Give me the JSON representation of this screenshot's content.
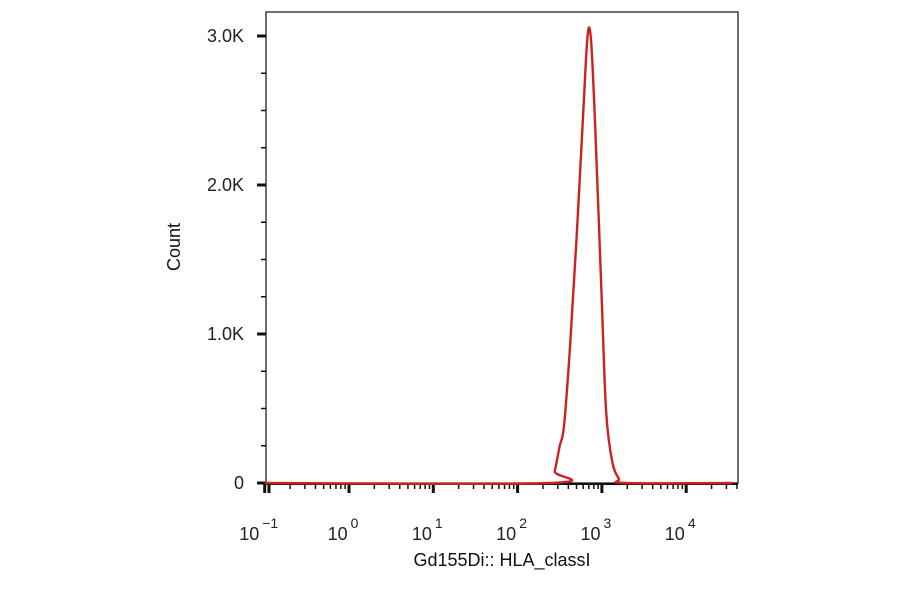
{
  "chart_data": {
    "type": "line",
    "xlabel": "Gd155Di:: HLA_classI",
    "ylabel": "Count",
    "x_scale": "log (biexponential display)",
    "xlim": [
      -1,
      4.55
    ],
    "ylim": [
      0,
      3200
    ],
    "grid": false,
    "legend": "none",
    "y_ticks": [
      {
        "value": 0,
        "label": "0"
      },
      {
        "value": 1000,
        "label": "1.0K"
      },
      {
        "value": 2000,
        "label": "2.0K"
      },
      {
        "value": 3000,
        "label": "3.0K"
      }
    ],
    "x_ticks": [
      {
        "exponent": -1,
        "base": "10",
        "sup": "−1"
      },
      {
        "exponent": 0,
        "base": "10",
        "sup": "0"
      },
      {
        "exponent": 1,
        "base": "10",
        "sup": "1"
      },
      {
        "exponent": 2,
        "base": "10",
        "sup": "2"
      },
      {
        "exponent": 3,
        "base": "10",
        "sup": "3"
      },
      {
        "exponent": 4,
        "base": "10",
        "sup": "4"
      }
    ],
    "series": [
      {
        "color": "#cc2222",
        "points": [
          [
            -1.0,
            0
          ],
          [
            2.38,
            0
          ],
          [
            2.44,
            80
          ],
          [
            2.5,
            250
          ],
          [
            2.55,
            380
          ],
          [
            2.62,
            900
          ],
          [
            2.7,
            1650
          ],
          [
            2.78,
            2500
          ],
          [
            2.83,
            3000
          ],
          [
            2.87,
            2980
          ],
          [
            2.92,
            2400
          ],
          [
            3.0,
            1200
          ],
          [
            3.05,
            480
          ],
          [
            3.12,
            150
          ],
          [
            3.2,
            30
          ],
          [
            3.28,
            0
          ],
          [
            4.55,
            0
          ]
        ]
      }
    ]
  }
}
